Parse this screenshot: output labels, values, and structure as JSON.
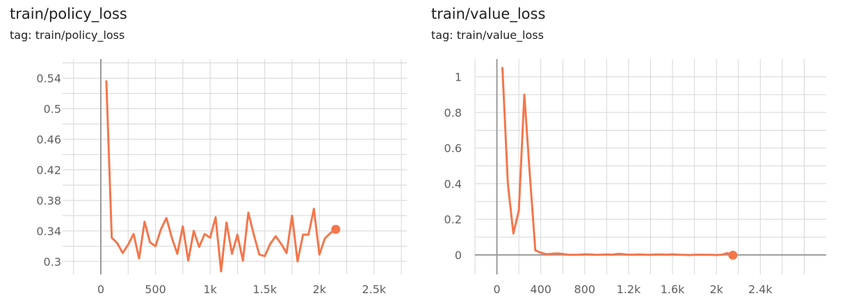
{
  "chart_data": [
    {
      "type": "line",
      "title": "train/policy_loss",
      "subtitle": "tag: train/policy_loss",
      "xlabel": "",
      "ylabel": "",
      "xlim": [
        -350,
        2800
      ],
      "ylim": [
        0.283,
        0.565
      ],
      "x_ticks": [
        0,
        500,
        1000,
        1500,
        2000,
        2500
      ],
      "x_tick_labels": [
        "0",
        "500",
        "1k",
        "1.5k",
        "2k",
        "2.5k"
      ],
      "x_grid": [
        -250,
        0,
        250,
        500,
        750,
        1000,
        1250,
        1500,
        1750,
        2000,
        2250,
        2500,
        2750
      ],
      "y_ticks": [
        0.3,
        0.34,
        0.38,
        0.42,
        0.46,
        0.5,
        0.54
      ],
      "y_tick_labels": [
        "0.3",
        "0.34",
        "0.38",
        "0.42",
        "0.46",
        "0.5",
        "0.54"
      ],
      "y_grid": [
        0.3,
        0.32,
        0.34,
        0.36,
        0.38,
        0.4,
        0.42,
        0.44,
        0.46,
        0.48,
        0.5,
        0.52,
        0.54,
        0.56
      ],
      "grid": true,
      "color": "#f4764b",
      "series": [
        {
          "x": [
            50,
            100,
            150,
            200,
            250,
            300,
            350,
            400,
            450,
            500,
            550,
            600,
            650,
            700,
            750,
            800,
            850,
            900,
            950,
            1000,
            1050,
            1100,
            1150,
            1200,
            1250,
            1300,
            1350,
            1400,
            1450,
            1500,
            1550,
            1600,
            1650,
            1700,
            1750,
            1800,
            1850,
            1900,
            1950,
            2000,
            2050,
            2100,
            2150
          ],
          "values": [
            0.536,
            0.331,
            0.324,
            0.311,
            0.322,
            0.336,
            0.304,
            0.352,
            0.325,
            0.32,
            0.342,
            0.357,
            0.331,
            0.31,
            0.346,
            0.301,
            0.34,
            0.319,
            0.336,
            0.331,
            0.358,
            0.287,
            0.351,
            0.31,
            0.335,
            0.301,
            0.364,
            0.335,
            0.309,
            0.307,
            0.323,
            0.333,
            0.323,
            0.311,
            0.36,
            0.3,
            0.335,
            0.335,
            0.369,
            0.309,
            0.33,
            0.337,
            0.342
          ]
        }
      ]
    },
    {
      "type": "line",
      "title": "train/value_loss",
      "subtitle": "tag: train/value_loss",
      "xlabel": "",
      "ylabel": "",
      "xlim": [
        -200,
        3000
      ],
      "ylim": [
        -0.11,
        1.1
      ],
      "x_ticks": [
        0,
        400,
        800,
        1200,
        1600,
        2000,
        2400
      ],
      "x_tick_labels": [
        "0",
        "400",
        "800",
        "1.2k",
        "1.6k",
        "2k",
        "2.4k"
      ],
      "x_grid": [
        -200,
        0,
        200,
        400,
        600,
        800,
        1000,
        1200,
        1400,
        1600,
        1800,
        2000,
        2200,
        2400,
        2600,
        2800
      ],
      "y_ticks": [
        0,
        0.2,
        0.4,
        0.6,
        0.8,
        1
      ],
      "y_tick_labels": [
        "0",
        "0.2",
        "0.4",
        "0.6",
        "0.8",
        "1"
      ],
      "y_grid": [
        0,
        0.1,
        0.2,
        0.3,
        0.4,
        0.5,
        0.6,
        0.7,
        0.8,
        0.9,
        1.0
      ],
      "grid": true,
      "color": "#f4764b",
      "series": [
        {
          "x": [
            50,
            100,
            150,
            200,
            250,
            300,
            350,
            400,
            450,
            500,
            550,
            600,
            650,
            700,
            750,
            800,
            850,
            900,
            950,
            1000,
            1050,
            1100,
            1150,
            1200,
            1250,
            1300,
            1350,
            1400,
            1450,
            1500,
            1550,
            1600,
            1650,
            1700,
            1750,
            1800,
            1850,
            1900,
            1950,
            2000,
            2050,
            2100,
            2150
          ],
          "values": [
            1.05,
            0.4,
            0.12,
            0.25,
            0.9,
            0.45,
            0.025,
            0.012,
            0.003,
            0.006,
            0.008,
            0.005,
            0.0,
            0.0,
            0.001,
            0.003,
            0.002,
            0.0,
            0.001,
            0.002,
            0.001,
            0.006,
            0.004,
            0.001,
            0.001,
            0.002,
            0.001,
            0.0,
            0.002,
            0.002,
            0.001,
            0.003,
            0.001,
            0.0,
            -0.001,
            0.0,
            0.001,
            0.0,
            0.001,
            -0.001,
            0.001,
            0.01,
            -0.002
          ]
        }
      ]
    }
  ]
}
